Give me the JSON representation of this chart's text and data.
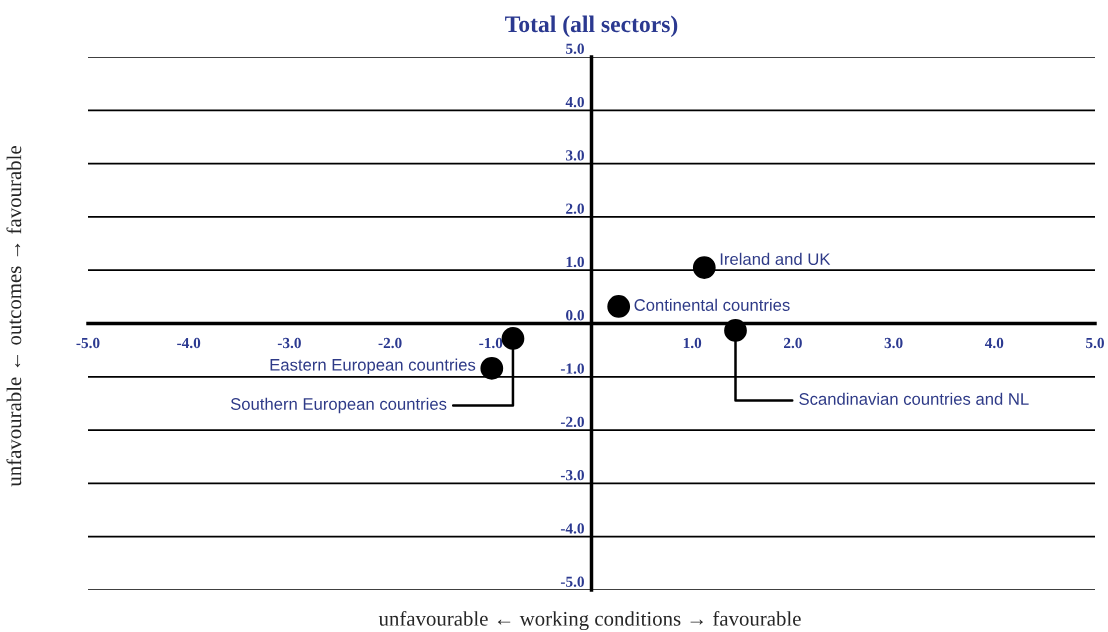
{
  "chart_data": {
    "type": "scatter",
    "title": "Total (all sectors)",
    "xlabel": "unfavourable ← working conditions → favourable",
    "ylabel": "unfavourable ← outcomes → favourable",
    "series": [
      {
        "color": "#000000",
        "x": [
          1.12,
          0.27,
          1.43,
          -0.78,
          -0.99
        ],
        "values": [
          1.05,
          0.32,
          -0.13,
          -0.28,
          -0.84
        ]
      }
    ],
    "annotations": [
      {
        "text": "Ireland and UK",
        "x": 1.12,
        "y": 1.05
      },
      {
        "text": "Continental countries",
        "x": 0.27,
        "y": 0.32
      },
      {
        "text": "Scandinavian countries and NL",
        "x": 1.43,
        "y": -0.13
      },
      {
        "text": "Southern European countries",
        "x": -0.78,
        "y": -0.28
      },
      {
        "text": "Eastern European countries",
        "x": -0.99,
        "y": -0.84
      }
    ],
    "xlim": [
      -5,
      5
    ],
    "ylim": [
      -5,
      5
    ],
    "xticks": [
      {
        "value": -5,
        "label": "-5.0"
      },
      {
        "value": -4,
        "label": "-4.0"
      },
      {
        "value": -3,
        "label": "-3.0"
      },
      {
        "value": -2,
        "label": "-2.0"
      },
      {
        "value": -1,
        "label": "-1.0"
      },
      {
        "value": 1,
        "label": "1.0"
      },
      {
        "value": 2,
        "label": "2.0"
      },
      {
        "value": 3,
        "label": "3.0"
      },
      {
        "value": 4,
        "label": "4.0"
      },
      {
        "value": 5,
        "label": "5.0"
      }
    ],
    "yticks": [
      {
        "value": -5,
        "label": "-5.0"
      },
      {
        "value": -4,
        "label": "-4.0"
      },
      {
        "value": -3,
        "label": "-3.0"
      },
      {
        "value": -2,
        "label": "-2.0"
      },
      {
        "value": -1,
        "label": "-1.0"
      },
      {
        "value": 0,
        "label": "0.0"
      },
      {
        "value": 1,
        "label": "1.0"
      },
      {
        "value": 2,
        "label": "2.0"
      },
      {
        "value": 3,
        "label": "3.0"
      },
      {
        "value": 4,
        "label": "4.0"
      },
      {
        "value": 5,
        "label": "5.0"
      }
    ],
    "grid": "y",
    "marker": "circle",
    "legend": false
  }
}
